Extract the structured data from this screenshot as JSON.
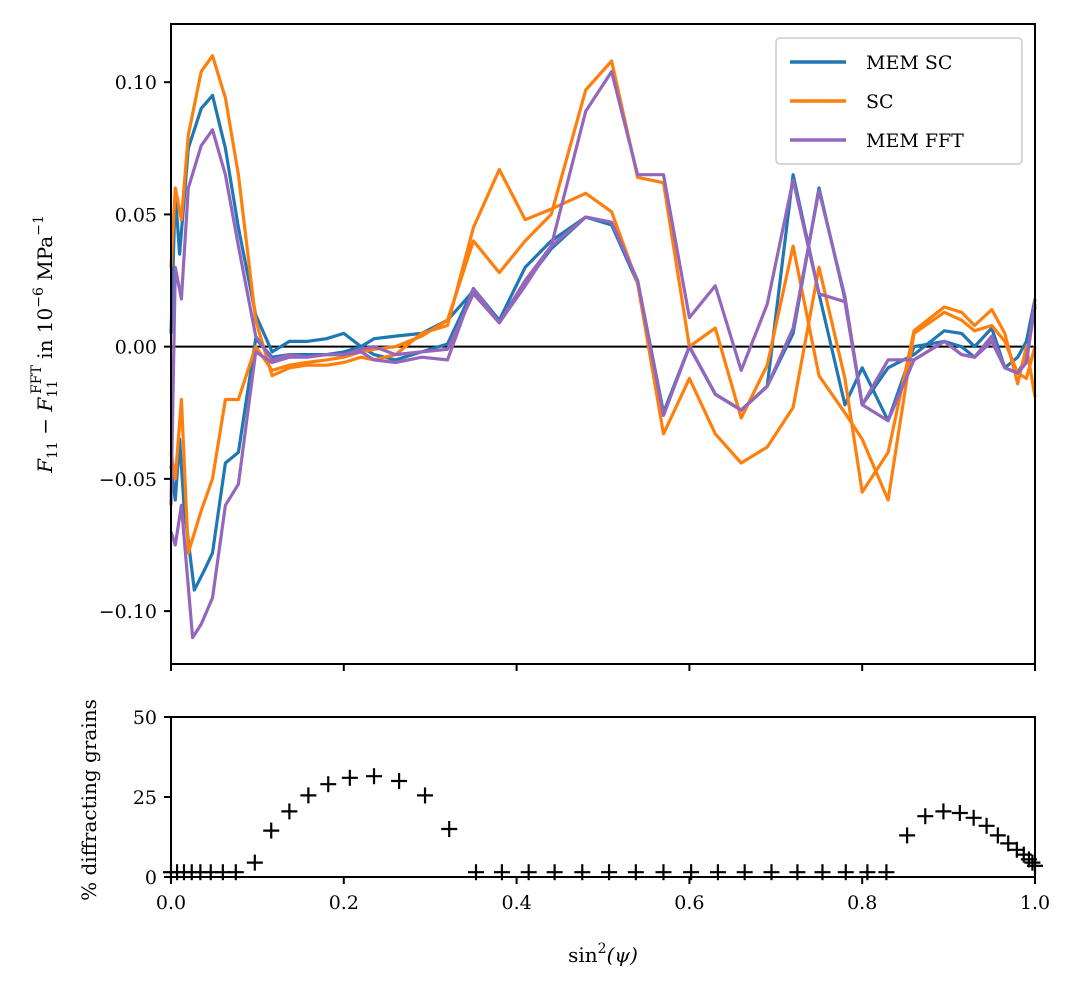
{
  "chart_data": [
    {
      "type": "line",
      "panel": "top",
      "ylabel": "F_11 − F_11^FFT in 10^−6 MPa^−1",
      "ylabel_parts": {
        "a": "F",
        "a_sub": "11",
        "minus": " − ",
        "b": "F",
        "b_sub": "11",
        "b_sup": "FFT",
        "c": " in 10",
        "c_sup": "−6",
        "d": " MPa",
        "d_sup": "−1"
      },
      "xlim": [
        0,
        1
      ],
      "ylim": [
        -0.12,
        0.122
      ],
      "yticks": [
        -0.1,
        -0.05,
        0.0,
        0.05,
        0.1
      ],
      "ytick_labels": [
        "−0.10",
        "−0.05",
        "0.00",
        "0.05",
        "0.10"
      ],
      "xticks": [
        0,
        0.2,
        0.4,
        0.6,
        0.8,
        1.0
      ],
      "hline": 0,
      "legend": {
        "placement": "top-right",
        "entries": [
          "MEM SC",
          "SC",
          "MEM FFT"
        ]
      },
      "series": [
        {
          "name": "MEM SC",
          "color": "#1f77b4",
          "upper": {
            "x": [
              0.0,
              0.005,
              0.01,
              0.02,
              0.035,
              0.048,
              0.063,
              0.078,
              0.098,
              0.117,
              0.137,
              0.157,
              0.18,
              0.2,
              0.22,
              0.235,
              0.26,
              0.29,
              0.32,
              0.35,
              0.38,
              0.41,
              0.44,
              0.48,
              0.51,
              0.54,
              0.57,
              0.6,
              0.63,
              0.66,
              0.69,
              0.72,
              0.75,
              0.78,
              0.8,
              0.83,
              0.86,
              0.895,
              0.915,
              0.93,
              0.95,
              0.965,
              0.98,
              0.99,
              1.0
            ],
            "y": [
              0.005,
              0.058,
              0.035,
              0.075,
              0.09,
              0.095,
              0.075,
              0.045,
              0.012,
              -0.002,
              0.002,
              0.002,
              0.003,
              0.005,
              0.0,
              0.003,
              0.004,
              0.005,
              0.01,
              0.021,
              0.01,
              0.03,
              0.04,
              0.049,
              0.047,
              0.025,
              -0.025,
              0.0,
              -0.018,
              -0.024,
              -0.015,
              0.005,
              0.06,
              0.018,
              -0.022,
              -0.008,
              -0.003,
              0.006,
              0.005,
              0.0,
              0.007,
              -0.008,
              -0.004,
              0.002,
              0.018
            ]
          },
          "lower": {
            "x": [
              0.0,
              0.005,
              0.01,
              0.015,
              0.027,
              0.038,
              0.048,
              0.063,
              0.078,
              0.098,
              0.117,
              0.137,
              0.157,
              0.18,
              0.2,
              0.22,
              0.235,
              0.26,
              0.29,
              0.32,
              0.35,
              0.38,
              0.41,
              0.44,
              0.48,
              0.51,
              0.54,
              0.57,
              0.6,
              0.63,
              0.66,
              0.69,
              0.72,
              0.75,
              0.78,
              0.8,
              0.83,
              0.86,
              0.895,
              0.915,
              0.93,
              0.95,
              0.965,
              0.98,
              0.99,
              1.0
            ],
            "y": [
              -0.045,
              -0.058,
              -0.035,
              -0.06,
              -0.092,
              -0.085,
              -0.078,
              -0.044,
              -0.04,
              0.003,
              -0.004,
              -0.003,
              -0.003,
              -0.003,
              -0.002,
              0.0,
              -0.003,
              -0.005,
              -0.002,
              0.001,
              0.022,
              0.01,
              0.024,
              0.037,
              0.049,
              0.046,
              0.024,
              -0.025,
              0.0,
              -0.018,
              -0.024,
              -0.015,
              0.065,
              0.02,
              -0.022,
              -0.008,
              -0.028,
              0.0,
              0.002,
              0.0,
              -0.004,
              0.002,
              -0.008,
              -0.01,
              -0.004,
              0.015
            ]
          }
        },
        {
          "name": "SC",
          "color": "#ff7f0e",
          "upper": {
            "x": [
              0.0,
              0.005,
              0.012,
              0.02,
              0.035,
              0.048,
              0.063,
              0.078,
              0.098,
              0.117,
              0.137,
              0.157,
              0.18,
              0.2,
              0.22,
              0.235,
              0.26,
              0.29,
              0.32,
              0.35,
              0.38,
              0.41,
              0.44,
              0.48,
              0.51,
              0.54,
              0.57,
              0.6,
              0.63,
              0.66,
              0.69,
              0.72,
              0.75,
              0.78,
              0.8,
              0.83,
              0.86,
              0.895,
              0.915,
              0.93,
              0.95,
              0.965,
              0.98,
              0.99,
              1.0
            ],
            "y": [
              0.03,
              0.06,
              0.048,
              0.08,
              0.104,
              0.11,
              0.094,
              0.065,
              0.01,
              -0.011,
              -0.008,
              -0.007,
              -0.007,
              -0.006,
              -0.004,
              -0.005,
              -0.003,
              0.005,
              0.008,
              0.045,
              0.067,
              0.048,
              0.052,
              0.058,
              0.051,
              0.024,
              -0.033,
              -0.012,
              -0.033,
              -0.044,
              -0.038,
              -0.023,
              0.03,
              -0.012,
              -0.055,
              -0.04,
              0.006,
              0.015,
              0.013,
              0.008,
              0.014,
              0.005,
              -0.014,
              0.0,
              -0.019
            ]
          },
          "lower": {
            "x": [
              0.0,
              0.005,
              0.012,
              0.02,
              0.035,
              0.048,
              0.063,
              0.078,
              0.098,
              0.117,
              0.137,
              0.157,
              0.18,
              0.2,
              0.22,
              0.235,
              0.26,
              0.29,
              0.32,
              0.35,
              0.38,
              0.41,
              0.44,
              0.48,
              0.51,
              0.54,
              0.57,
              0.6,
              0.63,
              0.66,
              0.69,
              0.72,
              0.75,
              0.78,
              0.8,
              0.83,
              0.86,
              0.895,
              0.915,
              0.93,
              0.95,
              0.965,
              0.98,
              0.99,
              1.0
            ],
            "y": [
              -0.04,
              -0.05,
              -0.02,
              -0.078,
              -0.062,
              -0.05,
              -0.02,
              -0.02,
              0.0,
              -0.009,
              -0.007,
              -0.006,
              -0.005,
              -0.004,
              -0.002,
              -0.001,
              0.0,
              0.004,
              0.01,
              0.04,
              0.028,
              0.04,
              0.05,
              0.097,
              0.108,
              0.064,
              0.062,
              0.0,
              0.007,
              -0.027,
              -0.007,
              0.038,
              -0.011,
              -0.025,
              -0.035,
              -0.058,
              0.005,
              0.013,
              0.01,
              0.006,
              0.008,
              0.002,
              -0.01,
              -0.012,
              0.0
            ]
          }
        },
        {
          "name": "MEM FFT",
          "color": "#9467bd",
          "upper": {
            "x": [
              0.0,
              0.005,
              0.012,
              0.02,
              0.035,
              0.048,
              0.063,
              0.078,
              0.098,
              0.117,
              0.137,
              0.157,
              0.18,
              0.2,
              0.22,
              0.235,
              0.26,
              0.29,
              0.32,
              0.35,
              0.38,
              0.41,
              0.44,
              0.48,
              0.51,
              0.54,
              0.57,
              0.6,
              0.63,
              0.66,
              0.69,
              0.72,
              0.75,
              0.78,
              0.8,
              0.83,
              0.86,
              0.895,
              0.915,
              0.93,
              0.95,
              0.965,
              0.98,
              0.99,
              1.0
            ],
            "y": [
              -0.06,
              0.03,
              0.018,
              0.06,
              0.076,
              0.082,
              0.065,
              0.038,
              0.004,
              -0.005,
              -0.003,
              -0.004,
              -0.003,
              -0.003,
              -0.002,
              -0.005,
              -0.006,
              -0.004,
              -0.005,
              0.022,
              0.009,
              0.023,
              0.038,
              0.089,
              0.104,
              0.065,
              0.065,
              0.011,
              0.023,
              -0.009,
              0.016,
              0.063,
              0.02,
              0.017,
              -0.022,
              -0.005,
              -0.005,
              0.002,
              -0.003,
              -0.004,
              0.004,
              -0.008,
              -0.01,
              -0.006,
              0.018
            ]
          },
          "lower": {
            "x": [
              0.0,
              0.005,
              0.012,
              0.025,
              0.035,
              0.048,
              0.063,
              0.078,
              0.098,
              0.117,
              0.137,
              0.157,
              0.18,
              0.2,
              0.22,
              0.235,
              0.26,
              0.29,
              0.32,
              0.35,
              0.38,
              0.41,
              0.44,
              0.48,
              0.51,
              0.54,
              0.57,
              0.6,
              0.63,
              0.66,
              0.69,
              0.72,
              0.75,
              0.78,
              0.8,
              0.83,
              0.86,
              0.895,
              0.915,
              0.93,
              0.95,
              0.965,
              0.98,
              0.99,
              1.0
            ],
            "y": [
              -0.07,
              -0.075,
              -0.06,
              -0.11,
              -0.105,
              -0.095,
              -0.06,
              -0.052,
              -0.002,
              -0.006,
              -0.004,
              -0.004,
              -0.003,
              -0.003,
              -0.001,
              0.0,
              -0.003,
              -0.002,
              -0.001,
              0.02,
              0.009,
              0.025,
              0.038,
              0.049,
              0.047,
              0.025,
              -0.026,
              0.0,
              -0.018,
              -0.024,
              -0.015,
              0.007,
              0.059,
              0.019,
              -0.022,
              -0.028,
              -0.005,
              0.002,
              -0.003,
              -0.004,
              0.002,
              -0.008,
              -0.01,
              -0.006,
              0.016
            ]
          }
        }
      ]
    },
    {
      "type": "scatter",
      "panel": "bottom",
      "marker": "+",
      "xlabel": "sin²(ψ)",
      "xlabel_parts": {
        "fn": "sin",
        "sup": "2",
        "arg": "(ψ)"
      },
      "ylabel": "% diffracting grains",
      "xlim": [
        0,
        1
      ],
      "ylim": [
        0,
        50
      ],
      "yticks": [
        0,
        25,
        50
      ],
      "ytick_labels": [
        "0",
        "25",
        "50"
      ],
      "xticks": [
        0,
        0.2,
        0.4,
        0.6,
        0.8,
        1.0
      ],
      "xtick_labels": [
        "0.0",
        "0.2",
        "0.4",
        "0.6",
        "0.8",
        "1.0"
      ],
      "x": [
        0.0,
        0.007,
        0.015,
        0.024,
        0.034,
        0.046,
        0.06,
        0.075,
        0.097,
        0.116,
        0.137,
        0.159,
        0.182,
        0.207,
        0.235,
        0.264,
        0.294,
        0.322,
        0.353,
        0.383,
        0.414,
        0.444,
        0.476,
        0.507,
        0.538,
        0.57,
        0.602,
        0.633,
        0.664,
        0.695,
        0.725,
        0.754,
        0.781,
        0.806,
        0.828,
        0.852,
        0.873,
        0.894,
        0.913,
        0.929,
        0.944,
        0.957,
        0.969,
        0.979,
        0.987,
        0.993,
        0.997,
        1.0
      ],
      "y": [
        1.5,
        1.5,
        1.5,
        1.5,
        1.5,
        1.5,
        1.5,
        1.5,
        4.5,
        14.5,
        20.5,
        25.5,
        29,
        31,
        31.5,
        30,
        25.5,
        15,
        1.5,
        1.5,
        1.5,
        1.5,
        1.5,
        1.5,
        1.5,
        1.5,
        1.5,
        1.5,
        1.5,
        1.5,
        1.5,
        1.5,
        1.5,
        1.5,
        1.5,
        13,
        19,
        20.5,
        20,
        18.5,
        16,
        13,
        10.5,
        8.5,
        7,
        5.5,
        4.5,
        3.5
      ]
    }
  ]
}
